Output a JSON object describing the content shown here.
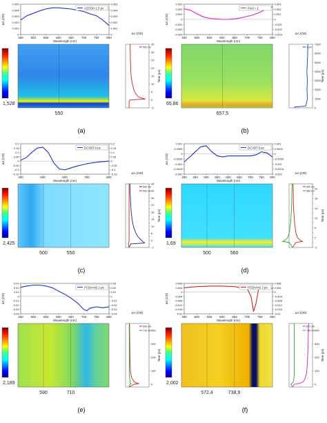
{
  "panels": [
    {
      "id": "a",
      "label": "(a)",
      "spectrum_legend": "AZOOH 1.5 ps",
      "spectrum_ylabel": "ΔA (OD)",
      "spectrum_xlabel": "Wavelength (nm)",
      "map_value_label": "1,528",
      "map_xticks": [
        "550"
      ],
      "kinetics_ylabel": "Time (ps)",
      "kinetics_xlabel": "ΔA (OD)",
      "kinetics_legend": [
        "550 nm"
      ],
      "colors": {
        "spectrum": "#1b2fd0",
        "kinetics": [
          "#d01f1f"
        ]
      }
    },
    {
      "id": "b",
      "label": "(b)",
      "spectrum_legend": "Pool = 1",
      "spectrum_ylabel": "ΔA (OD)",
      "spectrum_xlabel": "Wavelength (nm)",
      "map_value_label": "65,86",
      "map_xticks": [
        "657,5"
      ],
      "kinetics_ylabel": "Time (ps)",
      "kinetics_xlabel": "ΔA (OD)",
      "kinetics_legend": [
        "1 nm"
      ],
      "colors": {
        "spectrum": "#e020c8",
        "kinetics": [
          "#1b2fd0"
        ]
      }
    },
    {
      "id": "c",
      "label": "(c)",
      "spectrum_legend": "DCVBT 0 ps",
      "spectrum_ylabel": "ΔA (OD)",
      "spectrum_xlabel": "Wavelength (nm)",
      "map_value_label": "2,425",
      "map_xticks": [
        "500",
        "550"
      ],
      "kinetics_ylabel": "Time (ps)",
      "kinetics_xlabel": "ΔA (OD)",
      "kinetics_legend": [
        "500 nm",
        "550 nm"
      ],
      "colors": {
        "spectrum": "#1b2fd0",
        "kinetics": [
          "#1a237e",
          "#d01f1f"
        ]
      }
    },
    {
      "id": "d",
      "label": "(d)",
      "spectrum_legend": "DCVBT 0 ps",
      "spectrum_ylabel": "ΔA (OD)",
      "spectrum_xlabel": "Wavelength (nm)",
      "map_value_label": "1,69",
      "map_xticks": [
        "500",
        "560"
      ],
      "kinetics_ylabel": "Time (ps)",
      "kinetics_xlabel": "ΔA (OD)",
      "kinetics_legend": [
        "500 nm",
        "560 nm"
      ],
      "colors": {
        "spectrum": "#1b2fd0",
        "kinetics": [
          "#d01f1f",
          "#22a82a"
        ]
      }
    },
    {
      "id": "e",
      "label": "(e)",
      "spectrum_legend": "PCDnH42 2 ps",
      "spectrum_ylabel": "ΔA (OD)",
      "spectrum_xlabel": "Wavelength (nm)",
      "map_value_label": "2,189",
      "map_xticks": [
        "590",
        "710"
      ],
      "kinetics_ylabel": "Time (ps)",
      "kinetics_xlabel": "ΔA (OD)",
      "kinetics_legend": [
        "590 nm",
        "710 nm"
      ],
      "colors": {
        "spectrum": "#1b2fd0",
        "kinetics": [
          "#d01f1f",
          "#22a82a"
        ]
      }
    },
    {
      "id": "f",
      "label": "(f)",
      "spectrum_legend": "PCDnH42 2 ps",
      "spectrum_ylabel": "ΔA (OD)",
      "spectrum_xlabel": "Wavelength (nm)",
      "map_value_label": "2,002",
      "map_xticks": [
        "572,4",
        "738,9"
      ],
      "kinetics_ylabel": "Time (ps)",
      "kinetics_xlabel": "ΔA (OD)",
      "kinetics_legend": [
        "572 nm",
        "739 nm"
      ],
      "colors": {
        "spectrum": "#d01f1f",
        "kinetics": [
          "#d020c8",
          "#22a82a"
        ]
      }
    }
  ],
  "chart_data": [
    {
      "panel": "a",
      "type": "line",
      "title": "",
      "xlabel": "Wavelength (nm)",
      "ylabel": "ΔA (OD)",
      "xlim": [
        450,
        800
      ],
      "ylim": [
        0,
        0.005
      ],
      "xticks": [
        450,
        500,
        550,
        600,
        650,
        700,
        750,
        800
      ],
      "yticks": [
        0,
        0.001,
        0.002,
        0.003,
        0.004,
        0.005
      ],
      "series": [
        {
          "name": "AZOOH 1.5 ps",
          "x": [
            450,
            475,
            500,
            525,
            550,
            575,
            600,
            625,
            650,
            675,
            700,
            725,
            750,
            775,
            800
          ],
          "y": [
            0.0024,
            0.0031,
            0.0035,
            0.0039,
            0.0042,
            0.0044,
            0.0044,
            0.0043,
            0.0042,
            0.004,
            0.0038,
            0.0034,
            0.0031,
            0.0024,
            0.0015
          ]
        }
      ],
      "kinetics": {
        "xlabel": "ΔA (OD)",
        "ylabel": "Time (ps)",
        "ylim": [
          -5,
          35
        ],
        "yticks": [
          -5,
          0,
          5,
          10,
          15,
          20,
          25,
          30,
          35
        ],
        "series": [
          {
            "name": "550 nm",
            "t": [
              -5,
              -1,
              0,
              0.5,
              1,
              2,
              4,
              6,
              10,
              15,
              20,
              25,
              30,
              35
            ],
            "v": [
              0,
              0,
              0.05,
              1,
              0.8,
              0.55,
              0.4,
              0.3,
              0.2,
              0.12,
              0.1,
              0.08,
              0.07,
              0.06
            ]
          }
        ]
      }
    },
    {
      "panel": "b",
      "type": "line",
      "title": "",
      "xlabel": "Wavelength (nm)",
      "ylabel": "ΔA (OD)",
      "xlim": [
        450,
        800
      ],
      "ylim": [
        -0.003,
        0.003
      ],
      "xticks": [
        450,
        500,
        550,
        600,
        650,
        700,
        750,
        800
      ],
      "yticks": [
        -0.003,
        -0.002,
        -0.001,
        0,
        0.001,
        0.002,
        0.003
      ],
      "series": [
        {
          "name": "Pool = 1",
          "x": [
            450,
            475,
            500,
            525,
            550,
            575,
            600,
            625,
            650,
            675,
            700,
            725,
            750,
            775,
            800
          ],
          "y": [
            0.0021,
            0.0018,
            0.0011,
            0.0005,
            0.0002,
            0.0001,
            0.0,
            0.0,
            0.0001,
            0.0003,
            0.0006,
            0.0009,
            0.0014,
            0.002,
            0.0025
          ]
        }
      ],
      "kinetics": {
        "xlabel": "ΔA (OD)",
        "ylabel": "Time (ps)",
        "ylim": [
          0,
          7000
        ],
        "yticks": [
          0,
          1000,
          2000,
          3000,
          4000,
          5000,
          6000,
          7000
        ],
        "series": [
          {
            "name": "1 nm",
            "t": [
              0,
              100,
              200,
              500,
              1000,
              2000,
              3000,
              4000,
              5000,
              6000,
              7000
            ],
            "v": [
              0.1,
              0.15,
              0.8,
              0.85,
              0.9,
              0.88,
              0.9,
              0.87,
              0.9,
              0.92,
              0.93
            ]
          }
        ]
      }
    },
    {
      "panel": "c",
      "type": "line",
      "title": "",
      "xlabel": "Wavelength (nm)",
      "ylabel": "ΔA (OD)",
      "xlim": [
        400,
        800
      ],
      "ylim": [
        -0.15,
        0.2
      ],
      "xticks": [
        400,
        500,
        600,
        700,
        800
      ],
      "yticks": [
        -0.15,
        -0.1,
        -0.05,
        0,
        0.05,
        0.1,
        0.15,
        0.2
      ],
      "series": [
        {
          "name": "DCVBT 0 ps",
          "x": [
            400,
            425,
            450,
            475,
            500,
            525,
            550,
            575,
            600,
            650,
            700,
            750,
            800
          ],
          "y": [
            0.01,
            0.04,
            0.1,
            0.15,
            0.16,
            0.1,
            -0.02,
            -0.09,
            -0.1,
            -0.06,
            -0.03,
            -0.01,
            0.0
          ]
        }
      ],
      "kinetics": {
        "xlabel": "ΔA (OD)",
        "ylabel": "Time (ps)",
        "ylim": [
          -2,
          34
        ],
        "yticks": [
          -2,
          0,
          2,
          4,
          6,
          8,
          10,
          12,
          14,
          16,
          18,
          20,
          22,
          24,
          26,
          28,
          30,
          32,
          34
        ],
        "series": [
          {
            "name": "500 nm",
            "t": [
              -2,
              0,
              0.5,
              1,
              2,
              4,
              6,
              8,
              10,
              14,
              18,
              22,
              26,
              30,
              34
            ],
            "v": [
              0,
              0.1,
              0.95,
              0.9,
              0.75,
              0.55,
              0.42,
              0.33,
              0.26,
              0.18,
              0.13,
              0.1,
              0.08,
              0.06,
              0.05
            ]
          },
          {
            "name": "550 nm",
            "t": [
              -2,
              0,
              0.5,
              1,
              2,
              34
            ],
            "v": [
              0,
              -0.05,
              -0.02,
              0,
              0,
              0
            ]
          }
        ]
      }
    },
    {
      "panel": "d",
      "type": "line",
      "title": "",
      "xlabel": "Wavelength (nm)",
      "ylabel": "ΔA (OD)",
      "xlim": [
        400,
        800
      ],
      "ylim": [
        -0.002,
        0.001
      ],
      "xticks": [
        400,
        450,
        500,
        550,
        600,
        650,
        700,
        750,
        800
      ],
      "yticks": [
        -0.002,
        -0.0015,
        -0.001,
        -0.0005,
        0,
        0.0005,
        0.001
      ],
      "series": [
        {
          "name": "DCVBT 0 ps",
          "x": [
            400,
            425,
            450,
            475,
            500,
            525,
            550,
            575,
            600,
            650,
            700,
            725,
            750,
            775,
            800
          ],
          "y": [
            -0.0008,
            -0.0003,
            0.0002,
            0.0007,
            0.0008,
            0.0002,
            -0.0002,
            -0.0003,
            -0.0002,
            -0.0002,
            -0.0002,
            -0.0001,
            0.0002,
            0.0001,
            -0.0003
          ]
        }
      ],
      "kinetics": {
        "xlabel": "ΔA (OD)",
        "ylabel": "Time (ps)",
        "ylim": [
          -2,
          24
        ],
        "yticks": [
          -2,
          0,
          2,
          4,
          6,
          8,
          10,
          12,
          14,
          16,
          18,
          20,
          22,
          24
        ],
        "series": [
          {
            "name": "500 nm",
            "t": [
              -2,
              0,
              0.5,
              1,
              2,
              4,
              8,
              12,
              16,
              20,
              24
            ],
            "v": [
              0,
              0.2,
              0.6,
              0.45,
              0.3,
              0.2,
              0.12,
              0.08,
              0.05,
              0.04,
              0.03
            ]
          },
          {
            "name": "560 nm",
            "t": [
              -2,
              0,
              0.5,
              1,
              2,
              4,
              8,
              12,
              16,
              20,
              24
            ],
            "v": [
              0,
              -0.2,
              -0.6,
              -0.45,
              -0.3,
              -0.2,
              -0.12,
              -0.08,
              -0.05,
              -0.04,
              -0.03
            ]
          }
        ]
      }
    },
    {
      "panel": "e",
      "type": "line",
      "title": "",
      "xlabel": "Wavelength (nm)",
      "ylabel": "ΔA (OD)",
      "xlim": [
        450,
        800
      ],
      "ylim": [
        -0.04,
        0.03
      ],
      "xticks": [
        450,
        500,
        550,
        600,
        650,
        700,
        750,
        800
      ],
      "yticks": [
        -0.04,
        -0.03,
        -0.02,
        -0.01,
        0,
        0.01,
        0.02,
        0.03
      ],
      "series": [
        {
          "name": "PCDnH42 2 ps",
          "x": [
            450,
            475,
            500,
            525,
            550,
            575,
            600,
            625,
            650,
            675,
            700,
            712,
            725,
            750,
            775,
            800
          ],
          "y": [
            0.021,
            0.024,
            0.026,
            0.026,
            0.024,
            0.02,
            0.012,
            0.005,
            -0.004,
            -0.015,
            -0.03,
            -0.033,
            -0.027,
            -0.024,
            -0.026,
            -0.024
          ]
        }
      ],
      "kinetics": {
        "xlabel": "ΔA (OD)",
        "ylabel": "Time (ps)",
        "ylim": [
          -20,
          450
        ],
        "yticks": [
          0,
          100,
          200,
          300,
          400
        ],
        "series": [
          {
            "name": "590 nm",
            "t": [
              -20,
              0,
              5,
              10,
              20,
              50,
              100,
              200,
              300,
              450
            ],
            "v": [
              0,
              0.3,
              0.6,
              0.45,
              0.3,
              0.15,
              0.08,
              0.05,
              0.04,
              0.03
            ]
          },
          {
            "name": "710 nm",
            "t": [
              -20,
              0,
              5,
              10,
              20,
              50,
              100,
              450
            ],
            "v": [
              0,
              0.05,
              0.12,
              0.08,
              0.06,
              0.03,
              0.02,
              0.01
            ]
          }
        ]
      }
    },
    {
      "panel": "f",
      "type": "line",
      "title": "",
      "xlabel": "Wavelength (nm)",
      "ylabel": "ΔA (OD)",
      "xlim": [
        450,
        800
      ],
      "ylim": [
        -0.02,
        0.008
      ],
      "xticks": [
        450,
        500,
        550,
        600,
        650,
        700,
        750,
        800
      ],
      "yticks": [
        -0.02,
        -0.016,
        -0.012,
        -0.008,
        -0.004,
        0,
        0.004,
        0.008
      ],
      "series": [
        {
          "name": "PCDnH42 2 ps",
          "x": [
            450,
            500,
            550,
            600,
            650,
            700,
            715,
            725,
            735,
            745,
            760,
            800
          ],
          "y": [
            0.004,
            0.005,
            0.0055,
            0.0055,
            0.005,
            0.003,
            -0.004,
            -0.018,
            -0.01,
            0.003,
            0.004,
            0.0035
          ]
        }
      ],
      "kinetics": {
        "xlabel": "ΔA (OD)",
        "ylabel": "Time (ps)",
        "ylim": [
          -20,
          450
        ],
        "yticks": [
          0,
          100,
          200,
          300,
          400
        ],
        "series": [
          {
            "name": "572 nm",
            "t": [
              -20,
              0,
              5,
              10,
              20,
              40,
              80,
              150,
              300,
              450
            ],
            "v": [
              0,
              0.1,
              0.3,
              0.5,
              0.65,
              0.75,
              0.85,
              0.9,
              0.95,
              0.97
            ]
          },
          {
            "name": "739 nm",
            "t": [
              -20,
              0,
              5,
              10,
              20,
              40,
              80,
              150,
              300,
              450
            ],
            "v": [
              0,
              -0.1,
              -0.05,
              0,
              0.05,
              0.08,
              0.1,
              0.1,
              0.1,
              0.1
            ]
          }
        ]
      }
    }
  ]
}
